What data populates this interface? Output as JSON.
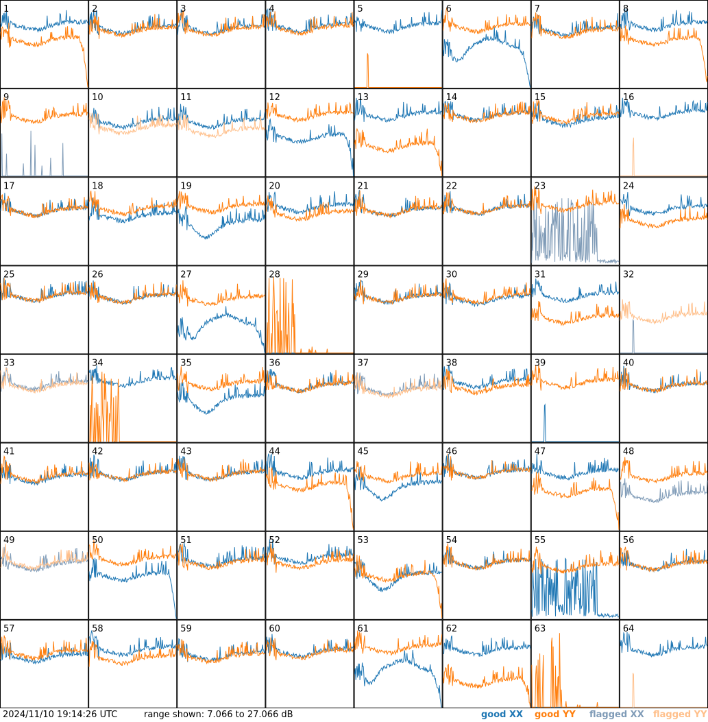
{
  "chart_data": {
    "type": "line",
    "grid": {
      "rows": 8,
      "cols": 8
    },
    "ylim": [
      7.066,
      27.066
    ],
    "footer": {
      "timestamp": "2024/11/10 19:14:26 UTC",
      "range_text": "range shown: 7.066 to 27.066 dB"
    },
    "legend": [
      {
        "key": "good_xx",
        "label": "good XX",
        "color": "#1f77b4"
      },
      {
        "key": "good_yy",
        "label": "good YY",
        "color": "#ff7f0e"
      },
      {
        "key": "flagged_xx",
        "label": "flagged XX",
        "color": "#7f9bb7"
      },
      {
        "key": "flagged_yy",
        "label": "flagged YY",
        "color": "#ffbf8a"
      }
    ],
    "panels": [
      {
        "label": "1",
        "xx": "good",
        "yy": "good",
        "xx_shape": "normal",
        "yy_shape": "rolloff",
        "xx_level": 0.72,
        "yy_level": 0.55
      },
      {
        "label": "2",
        "xx": "good",
        "yy": "good",
        "xx_shape": "normal",
        "yy_shape": "normal",
        "xx_level": 0.68,
        "yy_level": 0.66
      },
      {
        "label": "3",
        "xx": "good",
        "yy": "good",
        "xx_shape": "normal",
        "yy_shape": "normal",
        "xx_level": 0.68,
        "yy_level": 0.66
      },
      {
        "label": "4",
        "xx": "good",
        "yy": "good",
        "xx_shape": "normal",
        "yy_shape": "normal",
        "xx_level": 0.7,
        "yy_level": 0.68
      },
      {
        "label": "5",
        "xx": "good",
        "yy": "good",
        "xx_shape": "normal",
        "yy_shape": "dead_spike",
        "xx_level": 0.7,
        "yy_level": 0.0
      },
      {
        "label": "6",
        "xx": "good",
        "yy": "good",
        "xx_shape": "hump_rolloff",
        "yy_shape": "normal",
        "xx_level": 0.45,
        "yy_level": 0.7
      },
      {
        "label": "7",
        "xx": "good",
        "yy": "good",
        "xx_shape": "normal",
        "yy_shape": "normal",
        "xx_level": 0.66,
        "yy_level": 0.64
      },
      {
        "label": "8",
        "xx": "good",
        "yy": "good",
        "xx_shape": "normal",
        "yy_shape": "rolloff",
        "xx_level": 0.72,
        "yy_level": 0.55
      },
      {
        "label": "9",
        "xx": "flagged",
        "yy": "good",
        "xx_shape": "sparse_spikes",
        "yy_shape": "normal",
        "xx_level": 0.05,
        "yy_level": 0.68
      },
      {
        "label": "10",
        "xx": "good",
        "yy": "flagged",
        "xx_shape": "normal",
        "yy_shape": "normal",
        "xx_level": 0.62,
        "yy_level": 0.55
      },
      {
        "label": "11",
        "xx": "good",
        "yy": "flagged",
        "xx_shape": "normal",
        "yy_shape": "normal",
        "xx_level": 0.62,
        "yy_level": 0.52
      },
      {
        "label": "12",
        "xx": "good",
        "yy": "good",
        "xx_shape": "rolloff",
        "yy_shape": "normal",
        "xx_level": 0.45,
        "yy_level": 0.7
      },
      {
        "label": "13",
        "xx": "good",
        "yy": "good",
        "xx_shape": "normal",
        "yy_shape": "rolloff",
        "xx_level": 0.7,
        "yy_level": 0.35
      },
      {
        "label": "14",
        "xx": "good",
        "yy": "good",
        "xx_shape": "normal",
        "yy_shape": "normal",
        "xx_level": 0.7,
        "yy_level": 0.69
      },
      {
        "label": "15",
        "xx": "good",
        "yy": "good",
        "xx_shape": "normal",
        "yy_shape": "normal",
        "xx_level": 0.64,
        "yy_level": 0.68
      },
      {
        "label": "16",
        "xx": "good",
        "yy": "flagged",
        "xx_shape": "normal",
        "yy_shape": "dead_spike",
        "xx_level": 0.72,
        "yy_level": 0.0
      },
      {
        "label": "17",
        "xx": "good",
        "yy": "good",
        "xx_shape": "normal",
        "yy_shape": "normal",
        "xx_level": 0.62,
        "yy_level": 0.62
      },
      {
        "label": "18",
        "xx": "good",
        "yy": "good",
        "xx_shape": "normal",
        "yy_shape": "normal",
        "xx_level": 0.56,
        "yy_level": 0.64
      },
      {
        "label": "19",
        "xx": "good",
        "yy": "good",
        "xx_shape": "dip",
        "yy_shape": "normal",
        "xx_level": 0.48,
        "yy_level": 0.66
      },
      {
        "label": "20",
        "xx": "good",
        "yy": "good",
        "xx_shape": "normal",
        "yy_shape": "normal",
        "xx_level": 0.66,
        "yy_level": 0.58
      },
      {
        "label": "21",
        "xx": "good",
        "yy": "good",
        "xx_shape": "normal",
        "yy_shape": "normal",
        "xx_level": 0.62,
        "yy_level": 0.62
      },
      {
        "label": "22",
        "xx": "good",
        "yy": "good",
        "xx_shape": "normal",
        "yy_shape": "normal",
        "xx_level": 0.64,
        "yy_level": 0.64
      },
      {
        "label": "23",
        "xx": "flagged",
        "yy": "good",
        "xx_shape": "noisy_bottom",
        "yy_shape": "normal",
        "xx_level": 0.3,
        "yy_level": 0.68
      },
      {
        "label": "24",
        "xx": "good",
        "yy": "good",
        "xx_shape": "normal",
        "yy_shape": "normal",
        "xx_level": 0.64,
        "yy_level": 0.5
      },
      {
        "label": "25",
        "xx": "good",
        "yy": "good",
        "xx_shape": "normal",
        "yy_shape": "normal",
        "xx_level": 0.66,
        "yy_level": 0.66
      },
      {
        "label": "26",
        "xx": "good",
        "yy": "good",
        "xx_shape": "normal",
        "yy_shape": "normal",
        "xx_level": 0.64,
        "yy_level": 0.64
      },
      {
        "label": "27",
        "xx": "good",
        "yy": "good",
        "xx_shape": "hump_rolloff",
        "yy_shape": "normal",
        "xx_level": 0.32,
        "yy_level": 0.62
      },
      {
        "label": "28",
        "xx": "good",
        "yy": "good",
        "xx_shape": "dead",
        "yy_shape": "spike_cluster",
        "xx_level": 0.0,
        "yy_level": 0.0
      },
      {
        "label": "29",
        "xx": "good",
        "yy": "good",
        "xx_shape": "normal",
        "yy_shape": "normal",
        "xx_level": 0.64,
        "yy_level": 0.64
      },
      {
        "label": "30",
        "xx": "good",
        "yy": "good",
        "xx_shape": "normal",
        "yy_shape": "normal",
        "xx_level": 0.62,
        "yy_level": 0.64
      },
      {
        "label": "31",
        "xx": "good",
        "yy": "good",
        "xx_shape": "normal",
        "yy_shape": "normal",
        "xx_level": 0.66,
        "yy_level": 0.4
      },
      {
        "label": "32",
        "xx": "flagged",
        "yy": "flagged",
        "xx_shape": "dead_spike",
        "yy_shape": "normal",
        "xx_level": 0.0,
        "yy_level": 0.42
      },
      {
        "label": "33",
        "xx": "flagged",
        "yy": "flagged",
        "xx_shape": "normal",
        "yy_shape": "normal",
        "xx_level": 0.66,
        "yy_level": 0.64
      },
      {
        "label": "34",
        "xx": "good",
        "yy": "good",
        "xx_shape": "normal",
        "yy_shape": "spike_cluster",
        "xx_level": 0.7,
        "yy_level": 0.0
      },
      {
        "label": "35",
        "xx": "good",
        "yy": "good",
        "xx_shape": "dip",
        "yy_shape": "normal",
        "xx_level": 0.5,
        "yy_level": 0.66
      },
      {
        "label": "36",
        "xx": "good",
        "yy": "good",
        "xx_shape": "normal",
        "yy_shape": "normal",
        "xx_level": 0.64,
        "yy_level": 0.64
      },
      {
        "label": "37",
        "xx": "flagged",
        "yy": "flagged",
        "xx_shape": "normal",
        "yy_shape": "normal",
        "xx_level": 0.6,
        "yy_level": 0.58
      },
      {
        "label": "38",
        "xx": "good",
        "yy": "good",
        "xx_shape": "normal",
        "yy_shape": "normal",
        "xx_level": 0.68,
        "yy_level": 0.62
      },
      {
        "label": "39",
        "xx": "good",
        "yy": "good",
        "xx_shape": "dead_spike",
        "yy_shape": "normal",
        "xx_level": 0.0,
        "yy_level": 0.68
      },
      {
        "label": "40",
        "xx": "good",
        "yy": "good",
        "xx_shape": "normal",
        "yy_shape": "normal",
        "xx_level": 0.64,
        "yy_level": 0.64
      },
      {
        "label": "41",
        "xx": "good",
        "yy": "good",
        "xx_shape": "normal",
        "yy_shape": "normal",
        "xx_level": 0.6,
        "yy_level": 0.62
      },
      {
        "label": "42",
        "xx": "good",
        "yy": "good",
        "xx_shape": "normal",
        "yy_shape": "normal",
        "xx_level": 0.64,
        "yy_level": 0.64
      },
      {
        "label": "43",
        "xx": "good",
        "yy": "good",
        "xx_shape": "normal",
        "yy_shape": "normal",
        "xx_level": 0.64,
        "yy_level": 0.64
      },
      {
        "label": "44",
        "xx": "good",
        "yy": "good",
        "xx_shape": "normal",
        "yy_shape": "rolloff",
        "xx_level": 0.66,
        "yy_level": 0.52
      },
      {
        "label": "45",
        "xx": "good",
        "yy": "good",
        "xx_shape": "dip",
        "yy_shape": "normal",
        "xx_level": 0.52,
        "yy_level": 0.62
      },
      {
        "label": "46",
        "xx": "good",
        "yy": "good",
        "xx_shape": "normal",
        "yy_shape": "normal",
        "xx_level": 0.66,
        "yy_level": 0.66
      },
      {
        "label": "47",
        "xx": "good",
        "yy": "good",
        "xx_shape": "normal",
        "yy_shape": "rolloff",
        "xx_level": 0.66,
        "yy_level": 0.45
      },
      {
        "label": "48",
        "xx": "flagged",
        "yy": "good",
        "xx_shape": "normal",
        "yy_shape": "normal",
        "xx_level": 0.4,
        "yy_level": 0.62
      },
      {
        "label": "49",
        "xx": "flagged",
        "yy": "flagged",
        "xx_shape": "normal",
        "yy_shape": "normal",
        "xx_level": 0.62,
        "yy_level": 0.64
      },
      {
        "label": "50",
        "xx": "good",
        "yy": "good",
        "xx_shape": "rolloff",
        "yy_shape": "normal",
        "xx_level": 0.5,
        "yy_level": 0.68
      },
      {
        "label": "51",
        "xx": "good",
        "yy": "good",
        "xx_shape": "normal",
        "yy_shape": "normal",
        "xx_level": 0.66,
        "yy_level": 0.64
      },
      {
        "label": "52",
        "xx": "good",
        "yy": "good",
        "xx_shape": "normal",
        "yy_shape": "normal",
        "xx_level": 0.7,
        "yy_level": 0.64
      },
      {
        "label": "53",
        "xx": "good",
        "yy": "good",
        "xx_shape": "dip",
        "yy_shape": "rolloff",
        "xx_level": 0.5,
        "yy_level": 0.5
      },
      {
        "label": "54",
        "xx": "good",
        "yy": "good",
        "xx_shape": "normal",
        "yy_shape": "normal",
        "xx_level": 0.64,
        "yy_level": 0.64
      },
      {
        "label": "55",
        "xx": "good",
        "yy": "good",
        "xx_shape": "noisy_bottom",
        "yy_shape": "normal",
        "xx_level": 0.2,
        "yy_level": 0.6
      },
      {
        "label": "56",
        "xx": "good",
        "yy": "good",
        "xx_shape": "normal",
        "yy_shape": "normal",
        "xx_level": 0.62,
        "yy_level": 0.62
      },
      {
        "label": "57",
        "xx": "good",
        "yy": "good",
        "xx_shape": "normal",
        "yy_shape": "normal",
        "xx_level": 0.58,
        "yy_level": 0.62
      },
      {
        "label": "58",
        "xx": "good",
        "yy": "good",
        "xx_shape": "normal",
        "yy_shape": "normal",
        "xx_level": 0.66,
        "yy_level": 0.56
      },
      {
        "label": "59",
        "xx": "good",
        "yy": "good",
        "xx_shape": "normal",
        "yy_shape": "normal",
        "xx_level": 0.6,
        "yy_level": 0.58
      },
      {
        "label": "60",
        "xx": "good",
        "yy": "good",
        "xx_shape": "normal",
        "yy_shape": "normal",
        "xx_level": 0.64,
        "yy_level": 0.62
      },
      {
        "label": "61",
        "xx": "good",
        "yy": "good",
        "xx_shape": "hump_rolloff",
        "yy_shape": "normal",
        "xx_level": 0.42,
        "yy_level": 0.68
      },
      {
        "label": "62",
        "xx": "good",
        "yy": "good",
        "xx_shape": "normal",
        "yy_shape": "rolloff",
        "xx_level": 0.66,
        "yy_level": 0.3
      },
      {
        "label": "63",
        "xx": "good",
        "yy": "good",
        "xx_shape": "dead",
        "yy_shape": "spike_cluster",
        "xx_level": 0.0,
        "yy_level": 0.0
      },
      {
        "label": "64",
        "xx": "good",
        "yy": "flagged",
        "xx_shape": "normal",
        "yy_shape": "dead_spike",
        "xx_level": 0.66,
        "yy_level": 0.0
      }
    ]
  }
}
